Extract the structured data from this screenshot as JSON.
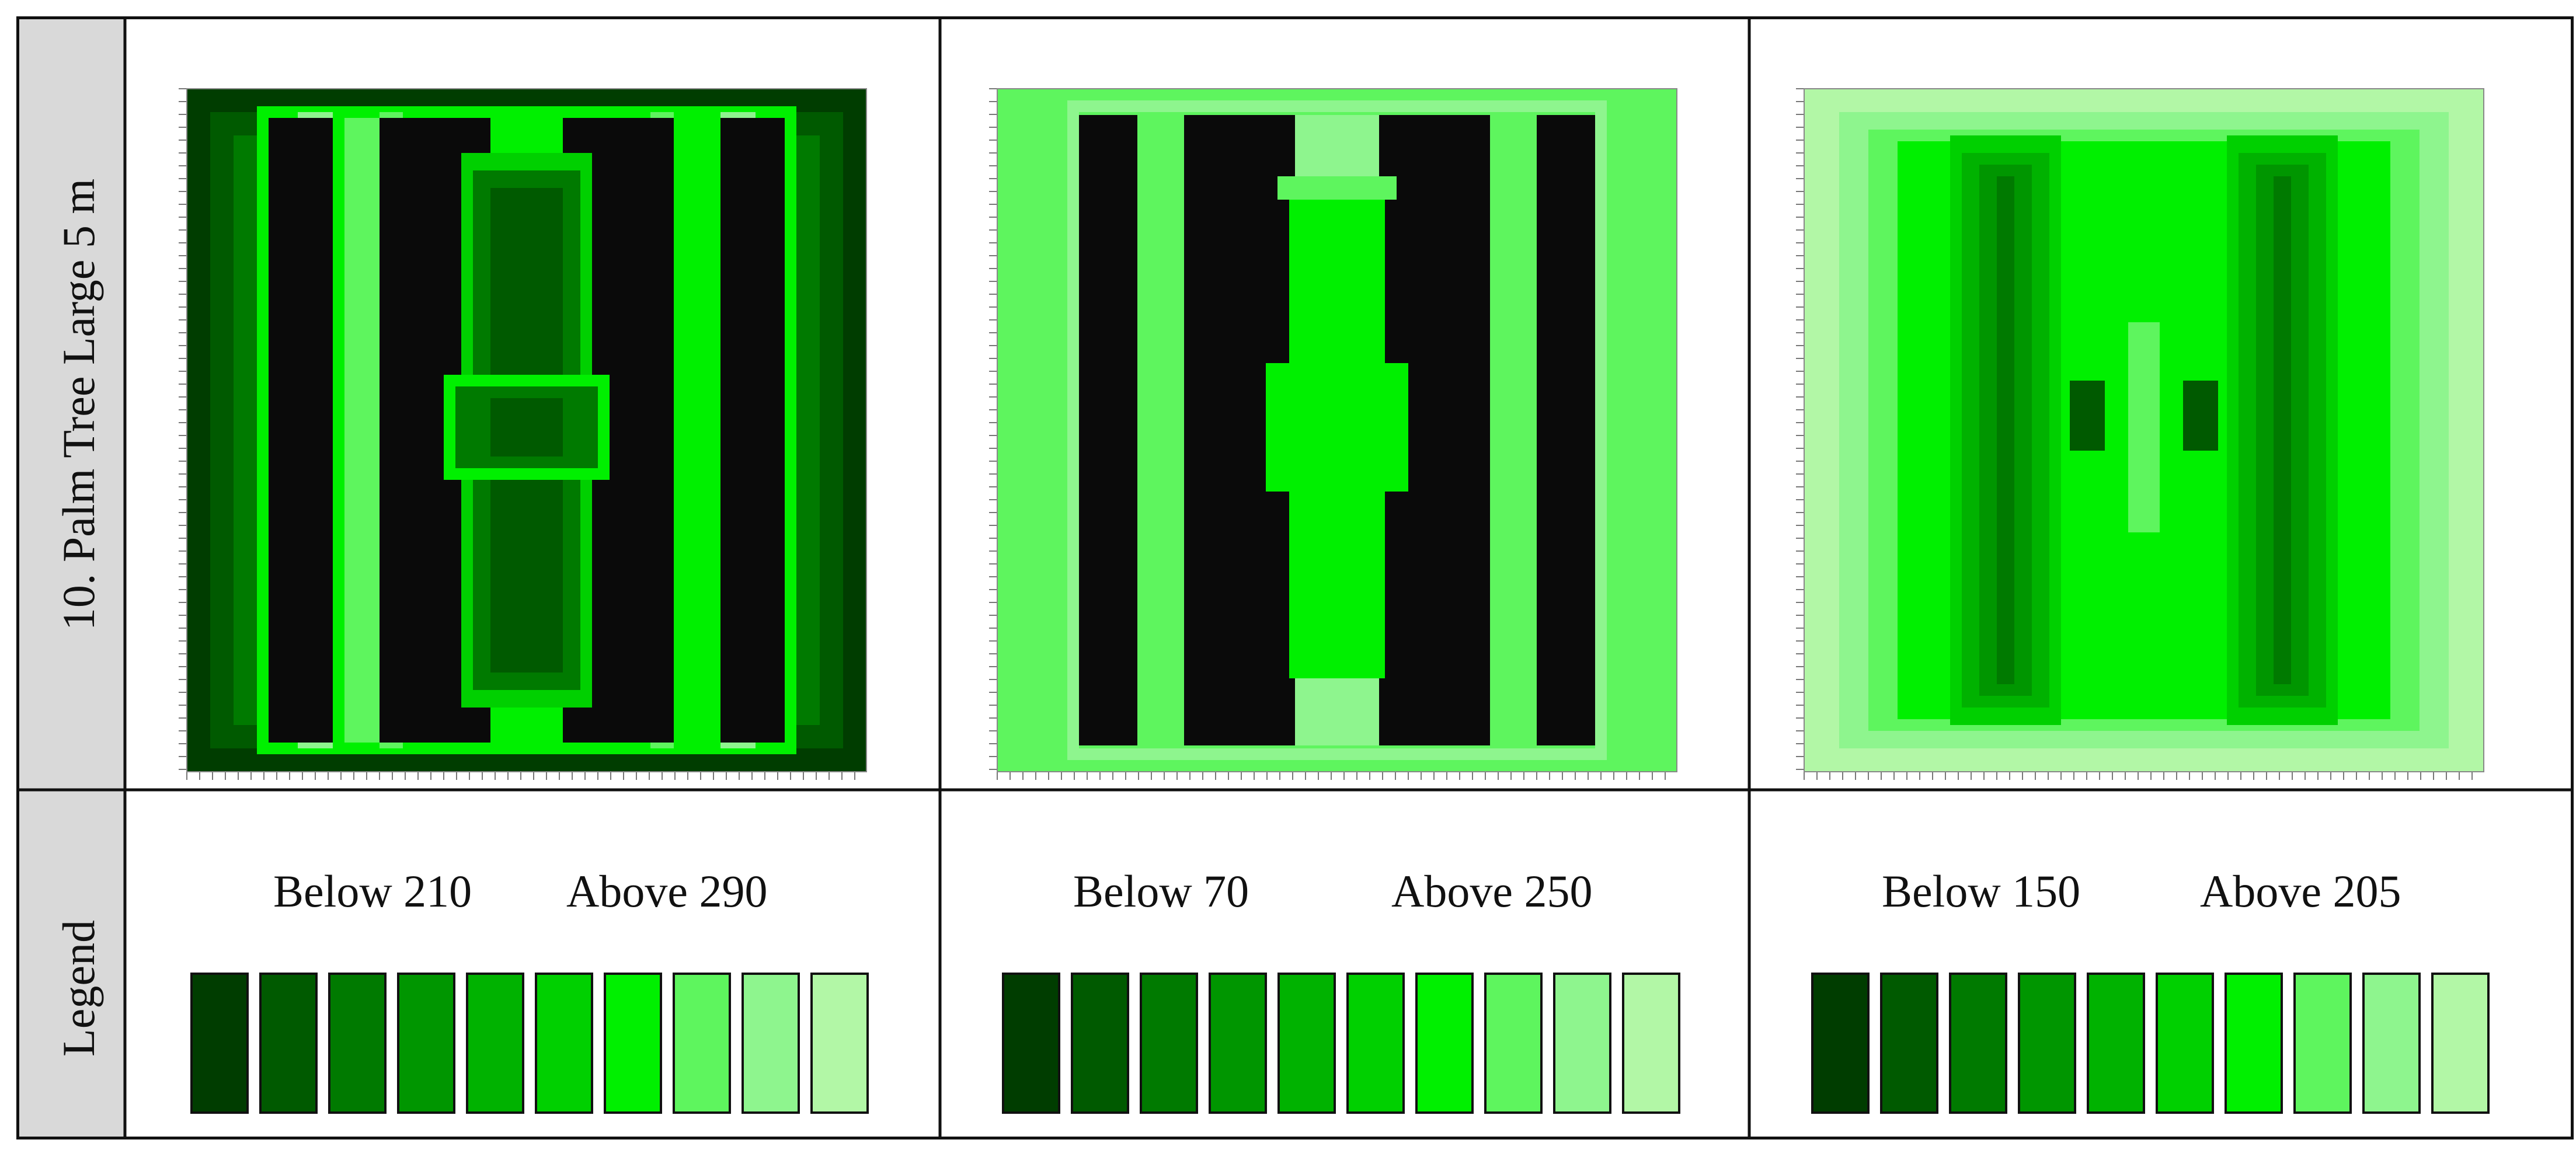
{
  "row_headers": {
    "maps": "10. Palm Tree Large 5 m",
    "legend": "Legend"
  },
  "palette": [
    "#003d00",
    "#005a00",
    "#007a00",
    "#009600",
    "#00b200",
    "#00d000",
    "#00f000",
    "#5ef55e",
    "#8ef58e",
    "#b2f7a6"
  ],
  "panels": [
    {
      "id": "left",
      "legend": {
        "low_label": "Below 210",
        "high_label": "Above 290"
      },
      "pattern": "inside-dark"
    },
    {
      "id": "middle",
      "legend": {
        "low_label": "Below 70",
        "high_label": "Above 250"
      },
      "pattern": "open-bright"
    },
    {
      "id": "right",
      "legend": {
        "low_label": "Below 150",
        "high_label": "Above 205"
      },
      "pattern": "diffuse"
    }
  ]
}
